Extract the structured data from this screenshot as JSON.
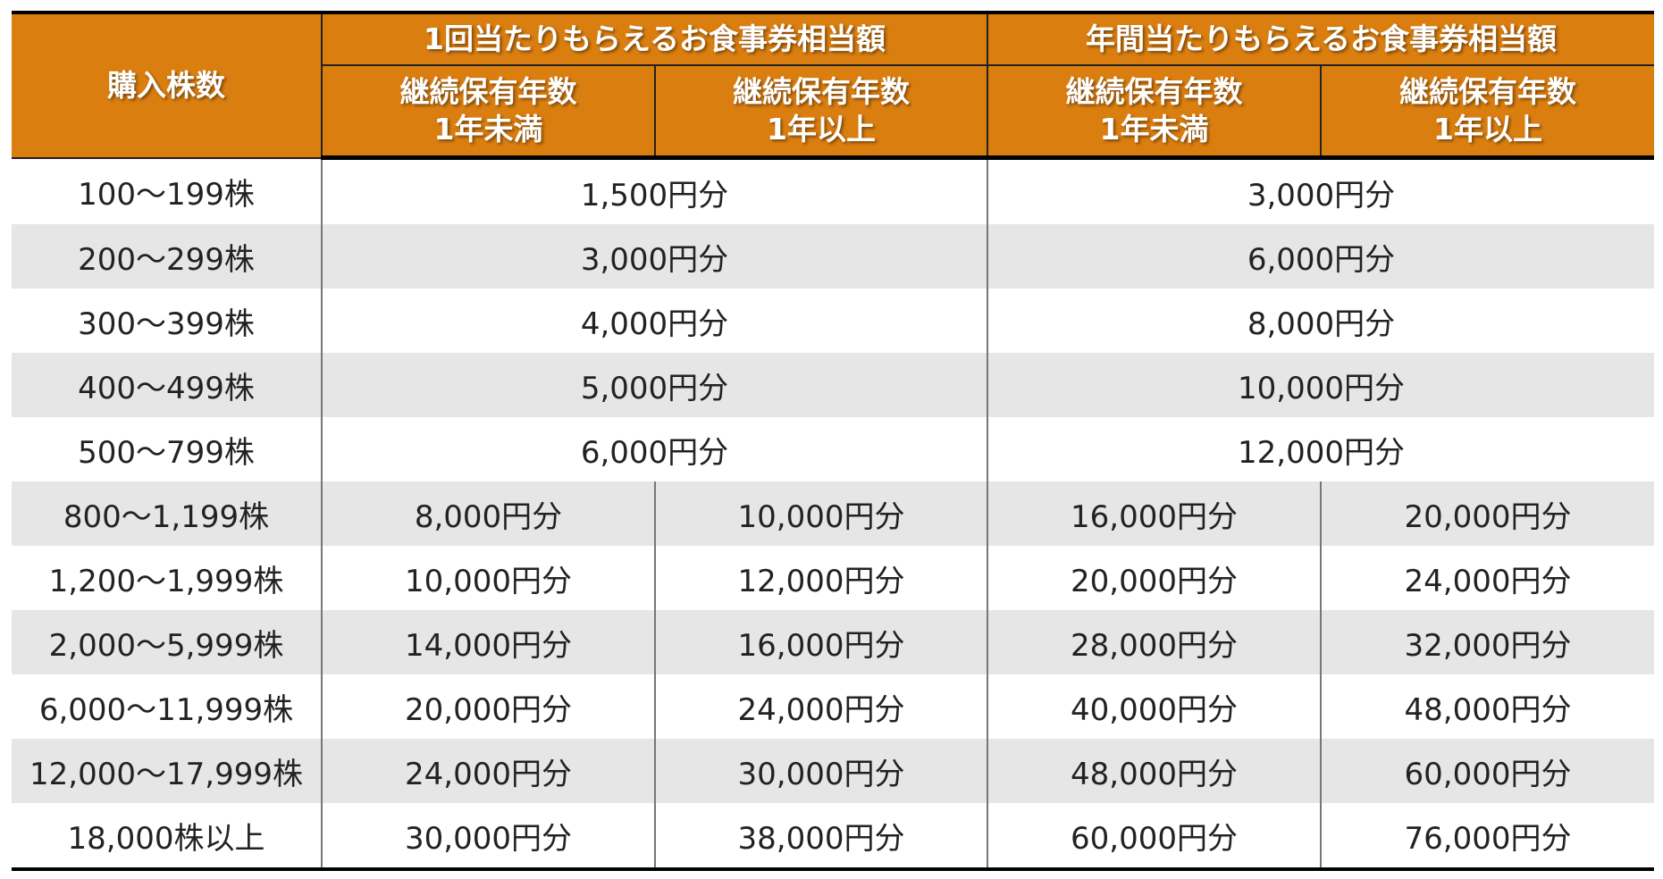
{
  "headers": {
    "shares": "購入株数",
    "per_time": "1回当たりもらえるお食事券相当額",
    "per_year": "年間当たりもらえるお食事券相当額",
    "sub_a_line1": "継続保有年数",
    "sub_a_line2": "1年未満",
    "sub_b_line1": "継続保有年数",
    "sub_b_line2": "1年以上"
  },
  "rows": [
    {
      "shares": "100〜199株",
      "per_time": "1,500円分",
      "per_year": "3,000円分"
    },
    {
      "shares": "200〜299株",
      "per_time": "3,000円分",
      "per_year": "6,000円分"
    },
    {
      "shares": "300〜399株",
      "per_time": "4,000円分",
      "per_year": "8,000円分"
    },
    {
      "shares": "400〜499株",
      "per_time": "5,000円分",
      "per_year": "10,000円分"
    },
    {
      "shares": "500〜799株",
      "per_time": "6,000円分",
      "per_year": "12,000円分"
    },
    {
      "shares": "800〜1,199株",
      "a": "8,000円分",
      "b": "10,000円分",
      "c": "16,000円分",
      "d": "20,000円分"
    },
    {
      "shares": "1,200〜1,999株",
      "a": "10,000円分",
      "b": "12,000円分",
      "c": "20,000円分",
      "d": "24,000円分"
    },
    {
      "shares": "2,000〜5,999株",
      "a": "14,000円分",
      "b": "16,000円分",
      "c": "28,000円分",
      "d": "32,000円分"
    },
    {
      "shares": "6,000〜11,999株",
      "a": "20,000円分",
      "b": "24,000円分",
      "c": "40,000円分",
      "d": "48,000円分"
    },
    {
      "shares": "12,000〜17,999株",
      "a": "24,000円分",
      "b": "30,000円分",
      "c": "48,000円分",
      "d": "60,000円分"
    },
    {
      "shares": "18,000株以上",
      "a": "30,000円分",
      "b": "38,000円分",
      "c": "60,000円分",
      "d": "76,000円分"
    }
  ]
}
